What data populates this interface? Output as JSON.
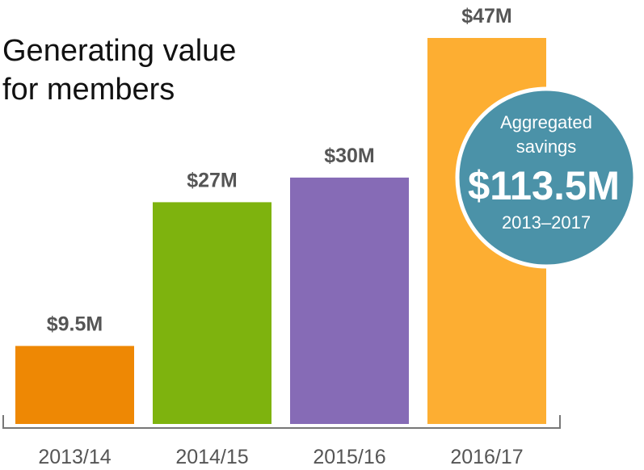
{
  "chart_data": {
    "type": "bar",
    "title_lines": [
      "Generating value",
      "for members"
    ],
    "categories": [
      "2013/14",
      "2014/15",
      "2015/16",
      "2016/17"
    ],
    "values": [
      9.5,
      27,
      30,
      47
    ],
    "value_labels": [
      "$9.5M",
      "$27M",
      "$30M",
      "$47M"
    ],
    "colors": [
      "#EE8804",
      "#7EB30E",
      "#866BB6",
      "#FDAE32"
    ],
    "ylim": [
      0,
      47
    ],
    "grid": false,
    "callout": {
      "line1": "Aggregated",
      "line2": "savings",
      "amount": "$113.5M",
      "period": "2013–2017",
      "fill_color": "#4B92A8"
    }
  }
}
